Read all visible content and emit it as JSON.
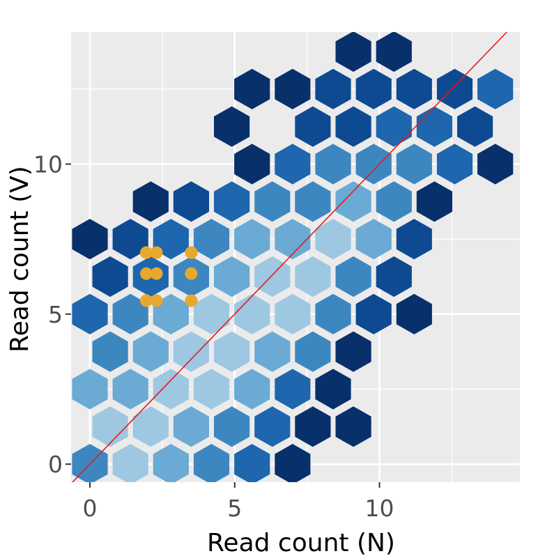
{
  "chart_data": {
    "type": "hexbin",
    "title": "",
    "xlabel": "Read count (N)",
    "ylabel": "Read count (V)",
    "xlim": [
      -0.65,
      14.85
    ],
    "ylim": [
      -0.6,
      14.4
    ],
    "x_ticks": [
      0,
      5,
      10
    ],
    "y_ticks": [
      0,
      5,
      10
    ],
    "x_tick_labels": [
      "0",
      "5",
      "10"
    ],
    "y_tick_labels": [
      "0",
      "5",
      "10"
    ],
    "grid": true,
    "panel_background": "#ebebeb",
    "grid_color": "#ffffff",
    "palette": [
      "#08306b",
      "#0d4a92",
      "#1e66ad",
      "#3d87c1",
      "#6aaad4",
      "#9ec7e2"
    ],
    "hex_cells": [
      {
        "x": 0.0,
        "y": 0.0,
        "level": 3
      },
      {
        "x": 1.4,
        "y": 0.0,
        "level": 5
      },
      {
        "x": 2.8,
        "y": 0.0,
        "level": 4
      },
      {
        "x": 4.2,
        "y": 0.0,
        "level": 3
      },
      {
        "x": 5.6,
        "y": 0.0,
        "level": 2
      },
      {
        "x": 7.0,
        "y": 0.0,
        "level": 0
      },
      {
        "x": 0.7,
        "y": 1.25,
        "level": 5
      },
      {
        "x": 2.1,
        "y": 1.25,
        "level": 5
      },
      {
        "x": 3.5,
        "y": 1.25,
        "level": 4
      },
      {
        "x": 4.9,
        "y": 1.25,
        "level": 3
      },
      {
        "x": 6.3,
        "y": 1.25,
        "level": 2
      },
      {
        "x": 7.7,
        "y": 1.25,
        "level": 0
      },
      {
        "x": 9.1,
        "y": 1.25,
        "level": 0
      },
      {
        "x": 0.0,
        "y": 2.5,
        "level": 4
      },
      {
        "x": 1.4,
        "y": 2.5,
        "level": 4
      },
      {
        "x": 2.8,
        "y": 2.5,
        "level": 5
      },
      {
        "x": 4.2,
        "y": 2.5,
        "level": 5
      },
      {
        "x": 5.6,
        "y": 2.5,
        "level": 4
      },
      {
        "x": 7.0,
        "y": 2.5,
        "level": 2
      },
      {
        "x": 8.4,
        "y": 2.5,
        "level": 0
      },
      {
        "x": 0.7,
        "y": 3.75,
        "level": 3
      },
      {
        "x": 2.1,
        "y": 3.75,
        "level": 4
      },
      {
        "x": 3.5,
        "y": 3.75,
        "level": 5
      },
      {
        "x": 4.9,
        "y": 3.75,
        "level": 5
      },
      {
        "x": 6.3,
        "y": 3.75,
        "level": 4
      },
      {
        "x": 7.7,
        "y": 3.75,
        "level": 3
      },
      {
        "x": 9.1,
        "y": 3.75,
        "level": 0
      },
      {
        "x": 0.0,
        "y": 5.0,
        "level": 2
      },
      {
        "x": 1.4,
        "y": 5.0,
        "level": 3
      },
      {
        "x": 2.8,
        "y": 5.0,
        "level": 4
      },
      {
        "x": 4.2,
        "y": 5.0,
        "level": 5
      },
      {
        "x": 5.6,
        "y": 5.0,
        "level": 5
      },
      {
        "x": 7.0,
        "y": 5.0,
        "level": 5
      },
      {
        "x": 8.4,
        "y": 5.0,
        "level": 3
      },
      {
        "x": 9.8,
        "y": 5.0,
        "level": 1
      },
      {
        "x": 11.2,
        "y": 5.0,
        "level": 0
      },
      {
        "x": 0.7,
        "y": 6.25,
        "level": 1
      },
      {
        "x": 2.1,
        "y": 6.25,
        "level": 2
      },
      {
        "x": 3.5,
        "y": 6.25,
        "level": 3
      },
      {
        "x": 4.9,
        "y": 6.25,
        "level": 4
      },
      {
        "x": 6.3,
        "y": 6.25,
        "level": 5
      },
      {
        "x": 7.7,
        "y": 6.25,
        "level": 5
      },
      {
        "x": 9.1,
        "y": 6.25,
        "level": 3
      },
      {
        "x": 10.5,
        "y": 6.25,
        "level": 1
      },
      {
        "x": 0.0,
        "y": 7.5,
        "level": 0
      },
      {
        "x": 1.4,
        "y": 7.5,
        "level": 1
      },
      {
        "x": 2.8,
        "y": 7.5,
        "level": 2
      },
      {
        "x": 4.2,
        "y": 7.5,
        "level": 3
      },
      {
        "x": 5.6,
        "y": 7.5,
        "level": 4
      },
      {
        "x": 7.0,
        "y": 7.5,
        "level": 4
      },
      {
        "x": 8.4,
        "y": 7.5,
        "level": 5
      },
      {
        "x": 9.8,
        "y": 7.5,
        "level": 4
      },
      {
        "x": 11.2,
        "y": 7.5,
        "level": 1
      },
      {
        "x": 2.1,
        "y": 8.75,
        "level": 0
      },
      {
        "x": 3.5,
        "y": 8.75,
        "level": 1
      },
      {
        "x": 4.9,
        "y": 8.75,
        "level": 2
      },
      {
        "x": 6.3,
        "y": 8.75,
        "level": 3
      },
      {
        "x": 7.7,
        "y": 8.75,
        "level": 3
      },
      {
        "x": 9.1,
        "y": 8.75,
        "level": 4
      },
      {
        "x": 10.5,
        "y": 8.75,
        "level": 3
      },
      {
        "x": 11.9,
        "y": 8.75,
        "level": 0
      },
      {
        "x": 5.6,
        "y": 10.0,
        "level": 0
      },
      {
        "x": 7.0,
        "y": 10.0,
        "level": 2
      },
      {
        "x": 8.4,
        "y": 10.0,
        "level": 3
      },
      {
        "x": 9.8,
        "y": 10.0,
        "level": 3
      },
      {
        "x": 11.2,
        "y": 10.0,
        "level": 3
      },
      {
        "x": 12.6,
        "y": 10.0,
        "level": 2
      },
      {
        "x": 14.0,
        "y": 10.0,
        "level": 0
      },
      {
        "x": 4.9,
        "y": 11.25,
        "level": 0
      },
      {
        "x": 7.7,
        "y": 11.25,
        "level": 1
      },
      {
        "x": 9.1,
        "y": 11.25,
        "level": 1
      },
      {
        "x": 10.5,
        "y": 11.25,
        "level": 2
      },
      {
        "x": 11.9,
        "y": 11.25,
        "level": 2
      },
      {
        "x": 13.3,
        "y": 11.25,
        "level": 1
      },
      {
        "x": 5.6,
        "y": 12.5,
        "level": 0
      },
      {
        "x": 7.0,
        "y": 12.5,
        "level": 0
      },
      {
        "x": 8.4,
        "y": 12.5,
        "level": 1
      },
      {
        "x": 9.8,
        "y": 12.5,
        "level": 1
      },
      {
        "x": 11.2,
        "y": 12.5,
        "level": 1
      },
      {
        "x": 12.6,
        "y": 12.5,
        "level": 1
      },
      {
        "x": 14.0,
        "y": 12.5,
        "level": 2
      },
      {
        "x": 9.1,
        "y": 13.75,
        "level": 0
      },
      {
        "x": 10.5,
        "y": 13.75,
        "level": 0
      }
    ],
    "hex_fill_fraction": 0.88,
    "reference_line": {
      "color": "#e41a1c",
      "points": [
        [
          -0.65,
          -0.65
        ],
        [
          14.4,
          14.4
        ]
      ]
    },
    "points": {
      "color": "#e8a82e",
      "values": [
        {
          "x": 1.95,
          "y": 7.05
        },
        {
          "x": 2.3,
          "y": 7.05
        },
        {
          "x": 3.5,
          "y": 7.05
        },
        {
          "x": 1.95,
          "y": 6.35
        },
        {
          "x": 2.3,
          "y": 6.35
        },
        {
          "x": 3.5,
          "y": 6.35
        },
        {
          "x": 1.95,
          "y": 5.45
        },
        {
          "x": 2.3,
          "y": 5.45
        },
        {
          "x": 3.5,
          "y": 5.45
        }
      ]
    }
  }
}
